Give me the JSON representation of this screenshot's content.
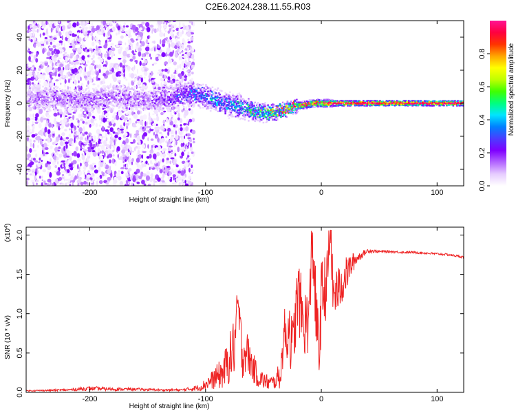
{
  "figure_title": "C2E6.2024.238.11.55.R03",
  "chart_data": [
    {
      "type": "heatmap",
      "title": "",
      "xlabel": "Height of straight line (km)",
      "ylabel": "Frequency (Hz)",
      "xlim": [
        -255,
        123
      ],
      "ylim": [
        -50,
        50
      ],
      "x_ticks": [
        -200,
        -100,
        0,
        100
      ],
      "y_ticks": [
        -40,
        -20,
        0,
        20,
        40
      ],
      "colorbar": {
        "label": "Normalized spectral amplitude",
        "range": [
          0,
          1
        ],
        "ticks": [
          0.0,
          0.2,
          0.4,
          0.6,
          0.8
        ],
        "colormap": [
          "#ffffff",
          "#e6ccff",
          "#b366ff",
          "#7f00ff",
          "#4b3cff",
          "#0080ff",
          "#00e5ff",
          "#00ff7f",
          "#40ff00",
          "#bfff00",
          "#ffff00",
          "#ffa500",
          "#ff3300",
          "#ff0040",
          "#ff1493"
        ]
      },
      "ridge": {
        "x": [
          -255,
          -230,
          -200,
          -175,
          -150,
          -130,
          -115,
          -100,
          -85,
          -70,
          -55,
          -45,
          -35,
          -25,
          -15,
          -5,
          5,
          15,
          50,
          90,
          123
        ],
        "center_hz": [
          2,
          3,
          2,
          4,
          2,
          3,
          6,
          4,
          0,
          -2,
          -5,
          -6,
          -5,
          -2,
          -1,
          0,
          0,
          0,
          0,
          0,
          0
        ],
        "half_width_hz": [
          6,
          6,
          6,
          6,
          5,
          6,
          5,
          5,
          5,
          5,
          4,
          3,
          2.5,
          2,
          2,
          2,
          2,
          1.5,
          1.5,
          1.5,
          1.5
        ],
        "peak_amplitude": [
          0.12,
          0.14,
          0.15,
          0.15,
          0.16,
          0.2,
          0.3,
          0.35,
          0.38,
          0.4,
          0.45,
          0.6,
          0.7,
          0.8,
          0.85,
          0.9,
          0.95,
          0.98,
          1.0,
          1.0,
          1.0
        ]
      },
      "background_scatter": {
        "x_range": [
          -255,
          -110
        ],
        "y_range": [
          -50,
          50
        ],
        "amplitude_range": [
          0.02,
          0.15
        ]
      }
    },
    {
      "type": "line",
      "title": "",
      "xlabel": "Height of straight line (km)",
      "ylabel": "SNR (10 * v/v)",
      "y_scale_label": "(x10",
      "y_scale_exp": "4",
      "y_scale_close": ")",
      "xlim": [
        -255,
        123
      ],
      "ylim": [
        0,
        2.1
      ],
      "x_ticks": [
        -200,
        -100,
        0,
        100
      ],
      "y_ticks": [
        0.0,
        0.5,
        1.0,
        1.5,
        2.0
      ],
      "color": "#ee2222",
      "series": [
        {
          "x": [
            -255,
            -220,
            -200,
            -180,
            -160,
            -140,
            -120,
            -105,
            -95,
            -85,
            -80,
            -75,
            -72,
            -70,
            -68,
            -65,
            -60,
            -55,
            -50,
            -45,
            -40,
            -35,
            -32,
            -30,
            -28,
            -25,
            -22,
            -20,
            -15,
            -10,
            -8,
            -5,
            -2,
            0,
            5,
            8,
            10,
            15,
            20,
            25,
            30,
            35,
            40,
            50,
            60,
            70,
            80,
            90,
            100,
            110,
            123
          ],
          "y": [
            0.02,
            0.03,
            0.05,
            0.04,
            0.04,
            0.03,
            0.03,
            0.06,
            0.15,
            0.25,
            0.4,
            0.6,
            1.15,
            0.7,
            0.45,
            0.55,
            0.35,
            0.2,
            0.15,
            0.12,
            0.13,
            0.25,
            0.8,
            0.65,
            0.9,
            0.5,
            1.0,
            1.25,
            0.85,
            1.0,
            2.05,
            1.1,
            0.45,
            1.2,
            1.4,
            2.1,
            1.25,
            1.3,
            1.45,
            1.6,
            1.7,
            1.75,
            1.8,
            1.79,
            1.79,
            1.78,
            1.78,
            1.77,
            1.76,
            1.75,
            1.72
          ],
          "noise": [
            0.005,
            0.01,
            0.02,
            0.015,
            0.012,
            0.01,
            0.01,
            0.03,
            0.08,
            0.15,
            0.22,
            0.28,
            0.15,
            0.3,
            0.2,
            0.2,
            0.15,
            0.1,
            0.08,
            0.07,
            0.06,
            0.15,
            0.2,
            0.25,
            0.3,
            0.3,
            0.3,
            0.35,
            0.3,
            0.35,
            0.3,
            0.35,
            0.3,
            0.35,
            0.3,
            0.25,
            0.25,
            0.22,
            0.18,
            0.12,
            0.06,
            0.03,
            0.02,
            0.012,
            0.01,
            0.01,
            0.01,
            0.01,
            0.01,
            0.01,
            0.01
          ]
        }
      ]
    }
  ]
}
